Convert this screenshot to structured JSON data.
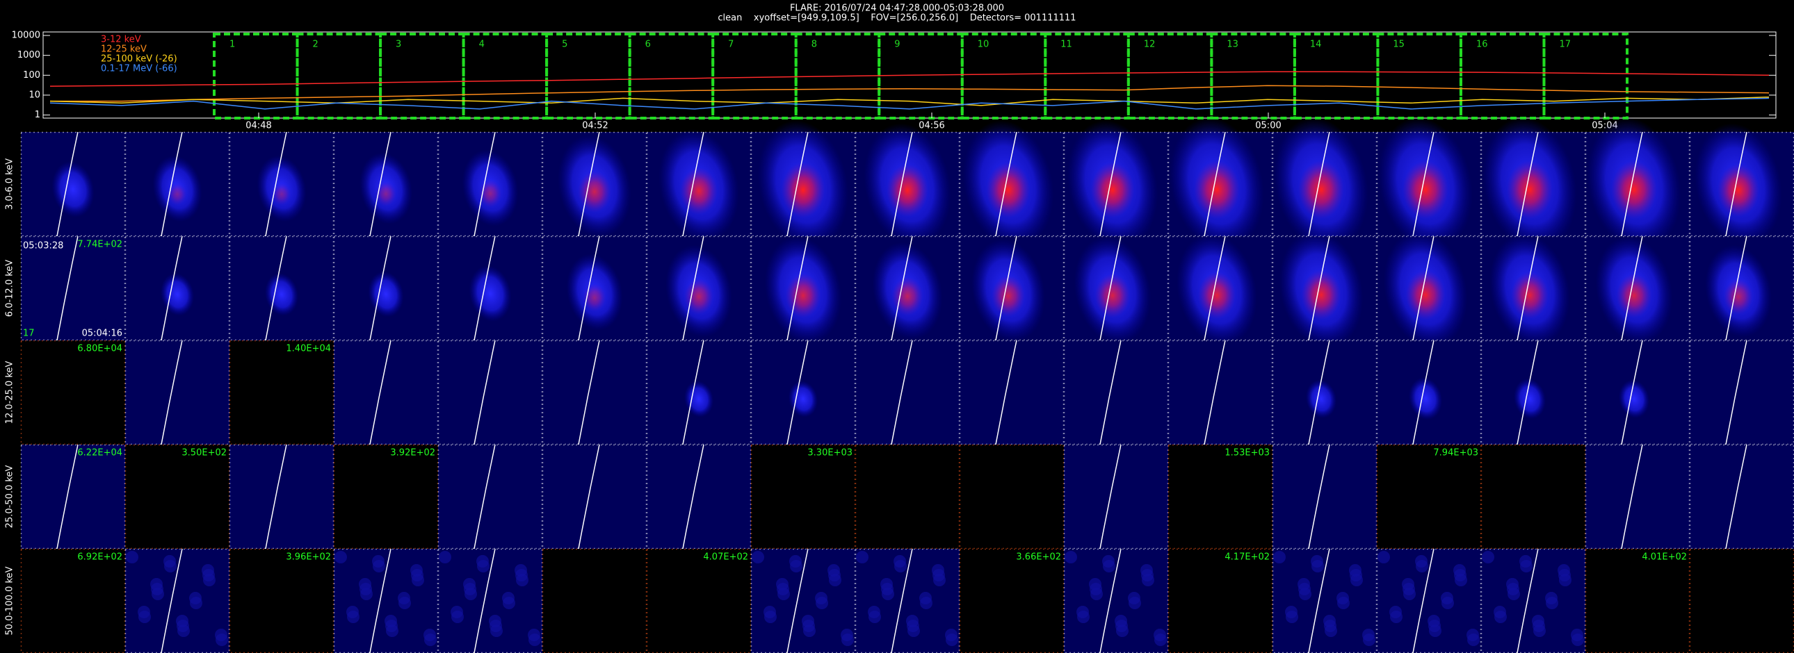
{
  "header": {
    "title": "FLARE: 2016/07/24 04:47:28.000-05:03:28.000",
    "subtitle": "clean    xyoffset=[949.9,109.5]    FOV=[256.0,256.0]    Detectors= 001111111"
  },
  "lightcurve": {
    "ylim": [
      0.7,
      15000
    ],
    "log": true,
    "yticks": [
      1,
      10,
      100,
      1000,
      10000
    ],
    "time_labels": [
      "04:48",
      "04:52",
      "04:56",
      "05:00",
      "05:04"
    ],
    "intervals": [
      "1",
      "2",
      "3",
      "4",
      "5",
      "6",
      "7",
      "8",
      "9",
      "10",
      "11",
      "12",
      "13",
      "14",
      "15",
      "16",
      "17"
    ],
    "interval_color": "#22dd22",
    "series": [
      {
        "name": "3-12 keV",
        "color": "#ff2a2a",
        "values": [
          28,
          30,
          33,
          35,
          40,
          45,
          50,
          55,
          62,
          70,
          80,
          90,
          100,
          110,
          120,
          130,
          140,
          150,
          150,
          145,
          140,
          130,
          120,
          110,
          100
        ]
      },
      {
        "name": "12-25 keV",
        "color": "#ff8c1a",
        "values": [
          5,
          5,
          6,
          7,
          8,
          9,
          11,
          13,
          15,
          17,
          19,
          20,
          21,
          20,
          19,
          18,
          24,
          30,
          28,
          24,
          20,
          17,
          15,
          14,
          13
        ]
      },
      {
        "name": "25-100 keV (-26)",
        "color": "#ffd21a",
        "values": [
          5,
          4,
          6,
          5,
          4,
          6,
          5,
          4,
          7,
          5,
          4,
          6,
          5,
          3,
          6,
          5,
          4,
          6,
          5,
          4,
          6,
          5,
          7,
          6,
          8
        ]
      },
      {
        "name": "0.1-17 MeV (-66)",
        "color": "#3d8bff",
        "values": [
          4,
          3,
          5,
          2,
          4,
          3,
          2,
          5,
          3,
          2,
          4,
          3,
          2,
          4,
          3,
          5,
          2,
          3,
          4,
          2,
          3,
          4,
          5,
          6,
          7
        ]
      }
    ]
  },
  "rows": [
    {
      "label": "3.0-6.0 keV",
      "labels": [
        null,
        null,
        null,
        null,
        null,
        null,
        null,
        null,
        null,
        null,
        null,
        null,
        null,
        null,
        null,
        null,
        null
      ]
    },
    {
      "label": "6.0-12.0 keV",
      "labels": [
        "7.74E+02",
        null,
        null,
        null,
        null,
        null,
        null,
        null,
        null,
        null,
        null,
        null,
        null,
        null,
        null,
        null,
        null
      ],
      "notes": [
        "05:03:28",
        "17",
        "05:04:16"
      ]
    },
    {
      "label": "12.0-25.0 keV",
      "labels": [
        "6.80E+04",
        null,
        "1.40E+04",
        null,
        null,
        null,
        null,
        null,
        null,
        null,
        null,
        null,
        null,
        null,
        null,
        null,
        null
      ]
    },
    {
      "label": "25.0-50.0 keV",
      "labels": [
        "6.22E+04",
        "3.50E+02",
        null,
        "3.92E+02",
        null,
        null,
        null,
        "3.30E+03",
        null,
        null,
        null,
        "1.53E+03",
        null,
        "7.94E+03",
        null,
        null,
        null
      ]
    },
    {
      "label": "50.0-100.0 keV",
      "labels": [
        "6.92E+02",
        null,
        "3.96E+02",
        null,
        null,
        null,
        "4.07E+02",
        null,
        null,
        "3.66E+02",
        null,
        "4.17E+02",
        null,
        null,
        null,
        "4.01E+02",
        null
      ]
    }
  ]
}
